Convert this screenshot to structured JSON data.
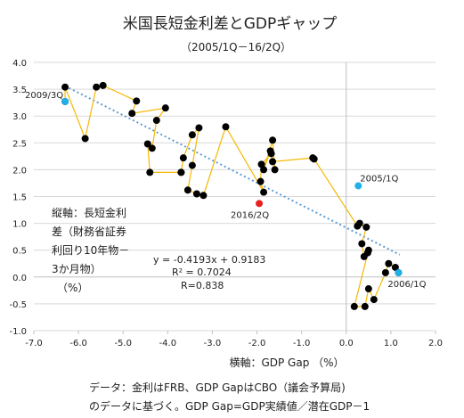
{
  "chart_data": {
    "type": "scatter",
    "title": "米国長短金利差とGDPギャップ",
    "subtitle": "（2005/1Q－16/2Q）",
    "xlabel": "横軸：GDP Gap （%）",
    "ylabel_lines": [
      "縦軸：長短金利",
      "差（財務省証券",
      "利回り10年物－",
      "3か月物）",
      "（%）"
    ],
    "xlim": [
      -7.0,
      2.0
    ],
    "ylim": [
      -1.0,
      4.0
    ],
    "x_ticks": [
      "-7.0",
      "-6.0",
      "-5.0",
      "-4.0",
      "-3.0",
      "-2.0",
      "-1.0",
      "0.0",
      "1.0",
      "2.0"
    ],
    "y_ticks": [
      "4.0",
      "3.5",
      "3.0",
      "2.5",
      "2.0",
      "1.5",
      "1.0",
      "0.5",
      "0.0",
      "-0.5",
      "-1.0"
    ],
    "grid": "y",
    "colors": {
      "points": "#000000",
      "path": "#f5b800",
      "highlight": "#1fb0e8",
      "latest": "#e82020",
      "trend": "#5b9bd5",
      "grid": "#d9d9d9"
    },
    "series": [
      {
        "x": [
          1.17,
          1.1,
          0.95,
          0.88,
          0.62,
          0.5,
          0.42,
          0.18,
          0.5,
          0.48,
          0.4,
          0.35,
          0.45,
          0.3,
          0.25,
          -0.72,
          -0.75,
          -1.65,
          -1.7,
          -1.85,
          -1.65,
          -1.6,
          -1.68,
          -1.9,
          -1.92,
          -1.85,
          -2.7,
          -3.2,
          -3.35,
          -3.55,
          -3.45,
          -3.3,
          -3.45,
          -3.65,
          -3.7,
          -3.7,
          -4.4,
          -4.45,
          -4.35,
          -4.25,
          -4.05,
          -4.8,
          -4.7,
          -5.45,
          -5.6,
          -5.85,
          -6.3,
          -6.3
        ],
        "y": [
          0.08,
          0.18,
          0.25,
          0.08,
          -0.42,
          -0.22,
          -0.55,
          -0.55,
          0.5,
          0.45,
          0.38,
          0.62,
          0.93,
          1.0,
          0.95,
          2.2,
          2.22,
          2.15,
          2.35,
          2.0,
          2.55,
          2.0,
          2.3,
          2.1,
          1.78,
          1.58,
          2.8,
          1.52,
          1.55,
          1.62,
          2.08,
          2.78,
          2.65,
          2.22,
          1.95,
          1.95,
          1.95,
          2.48,
          2.4,
          2.92,
          3.15,
          3.05,
          3.28,
          3.57,
          3.54,
          2.58,
          3.54,
          3.27
        ],
        "label": "",
        "connected": true
      }
    ],
    "highlighted_points": [
      {
        "label": "2005/1Q",
        "x": 0.27,
        "y": 1.7
      },
      {
        "label": "2006/1Q",
        "x": 1.17,
        "y": 0.08
      },
      {
        "label": "2009/3Q",
        "x": -6.3,
        "y": 3.27
      },
      {
        "label": "2016/2Q",
        "x": -1.95,
        "y": 1.37
      }
    ],
    "trendline": {
      "slope": -0.4193,
      "intercept": 0.9183,
      "x_range": [
        -6.3,
        1.2
      ],
      "equation": "y = -0.4193x + 0.9183",
      "r_squared": "R² = 0.7024",
      "r": "R=0.838"
    }
  },
  "footnote": [
    "データ：金利はFRB、GDP GapはCBO（議会予算局)",
    "のデータに基づく。GDP Gap=GDP実績値／潜在GDP－1"
  ]
}
